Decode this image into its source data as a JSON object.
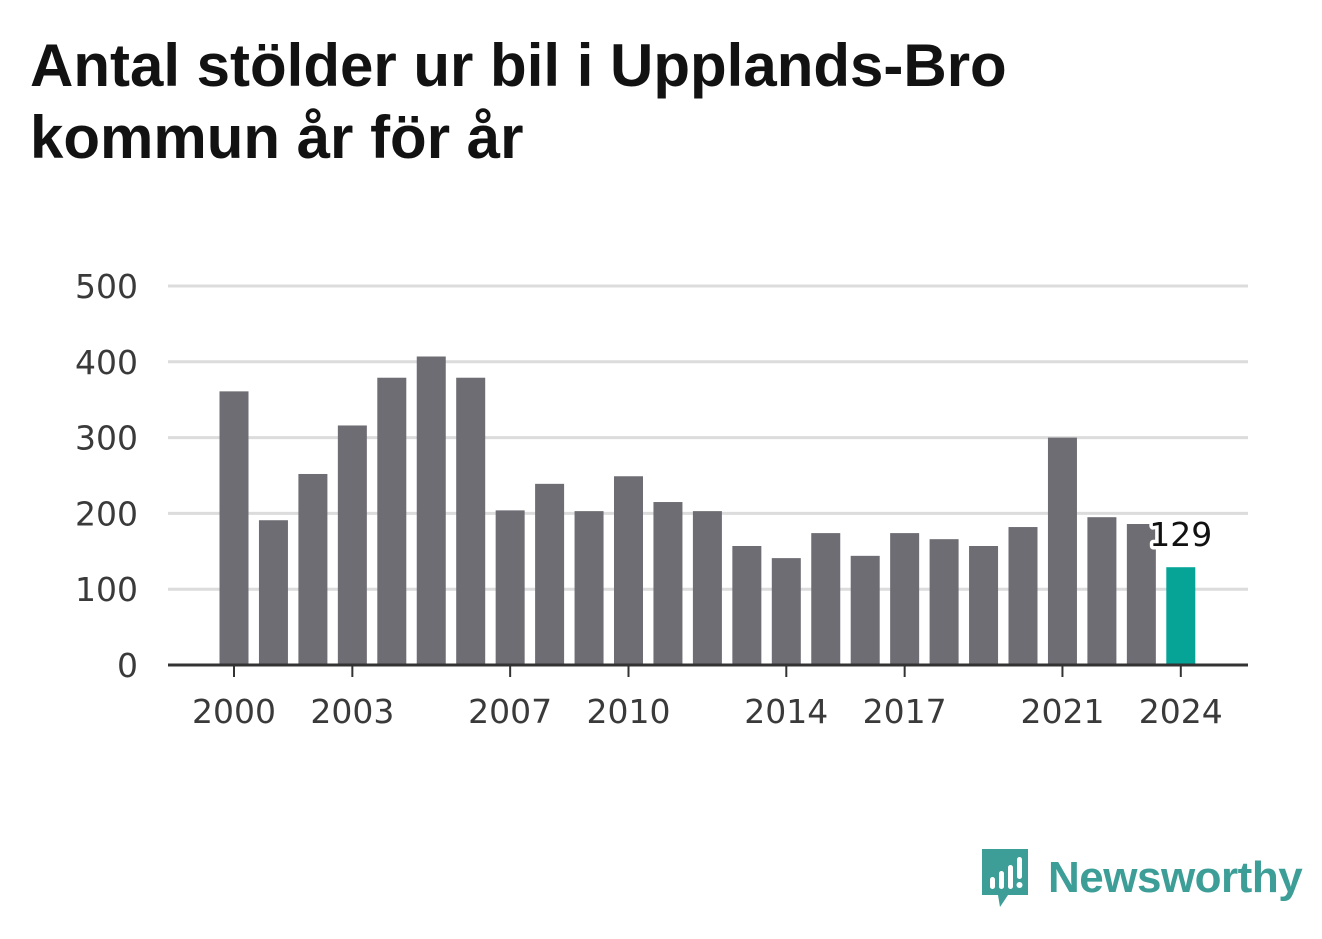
{
  "title": "Antal stölder ur bil i Upplands-Bro kommun år för år",
  "brand": {
    "name": "Newsworthy",
    "icon": "newsworthy-logo-icon"
  },
  "colors": {
    "bar": "#6e6d73",
    "highlight": "#05a497",
    "grid": "#dcdcdc",
    "axis": "#333333",
    "text": "#3a3a3a",
    "brand": "#3d9e98"
  },
  "chart_data": {
    "type": "bar",
    "title": "Antal stölder ur bil i Upplands-Bro kommun år för år",
    "xlabel": "",
    "ylabel": "",
    "ylim": [
      0,
      500
    ],
    "yticks": [
      0,
      100,
      200,
      300,
      400,
      500
    ],
    "grid": true,
    "categories": [
      "2000",
      "2001",
      "2002",
      "2003",
      "2004",
      "2005",
      "2006",
      "2007",
      "2008",
      "2009",
      "2010",
      "2011",
      "2012",
      "2013",
      "2014",
      "2015",
      "2016",
      "2017",
      "2018",
      "2019",
      "2020",
      "2021",
      "2022",
      "2023",
      "2024"
    ],
    "xtick_labels": [
      "2000",
      "2003",
      "2007",
      "2010",
      "2014",
      "2017",
      "2021",
      "2024"
    ],
    "values": [
      361,
      191,
      252,
      316,
      379,
      407,
      379,
      204,
      239,
      203,
      249,
      215,
      203,
      157,
      141,
      174,
      144,
      174,
      166,
      157,
      182,
      300,
      195,
      186,
      129
    ],
    "highlight": {
      "category": "2024",
      "value_label": "129"
    }
  }
}
